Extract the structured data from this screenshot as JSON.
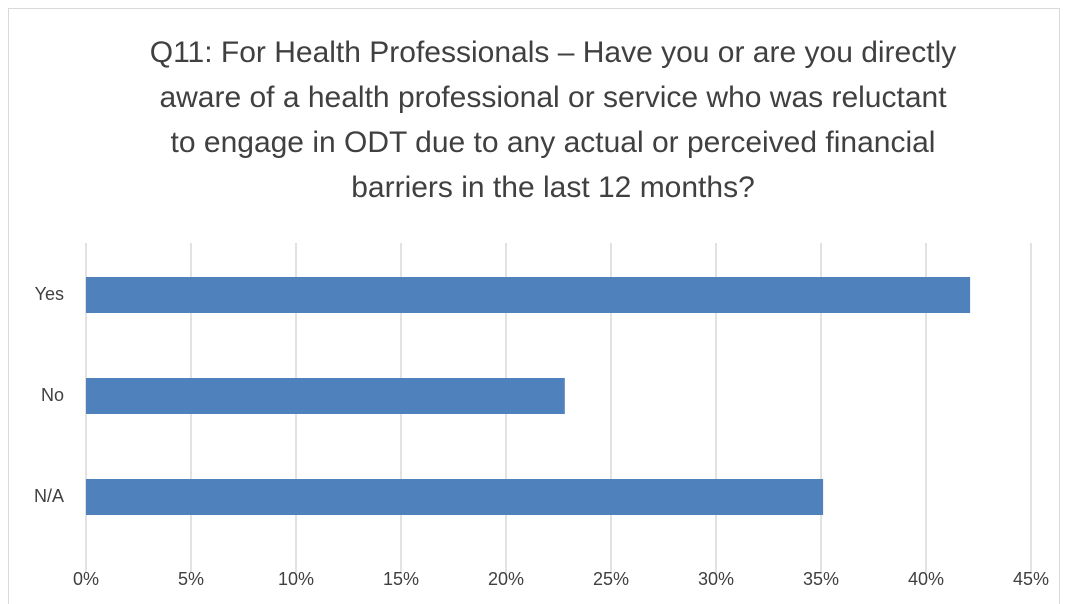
{
  "chart_data": {
    "type": "bar",
    "orientation": "horizontal",
    "title": "Q11: For Health Professionals – Have you or are you directly aware of a health professional or service who was reluctant to engage in ODT due to any actual or perceived financial barriers in the last 12 months?",
    "categories": [
      "Yes",
      "No",
      "N/A"
    ],
    "values": [
      42.1,
      22.8,
      35.1
    ],
    "color": "#4f81bd",
    "xlim": [
      0,
      45
    ],
    "xticks": [
      {
        "value": 0,
        "label": "0%"
      },
      {
        "value": 5,
        "label": "5%"
      },
      {
        "value": 10,
        "label": "10%"
      },
      {
        "value": 15,
        "label": "15%"
      },
      {
        "value": 20,
        "label": "20%"
      },
      {
        "value": 25,
        "label": "25%"
      },
      {
        "value": 30,
        "label": "30%"
      },
      {
        "value": 35,
        "label": "35%"
      },
      {
        "value": 40,
        "label": "40%"
      },
      {
        "value": 45,
        "label": "45%"
      }
    ],
    "grid": true
  }
}
